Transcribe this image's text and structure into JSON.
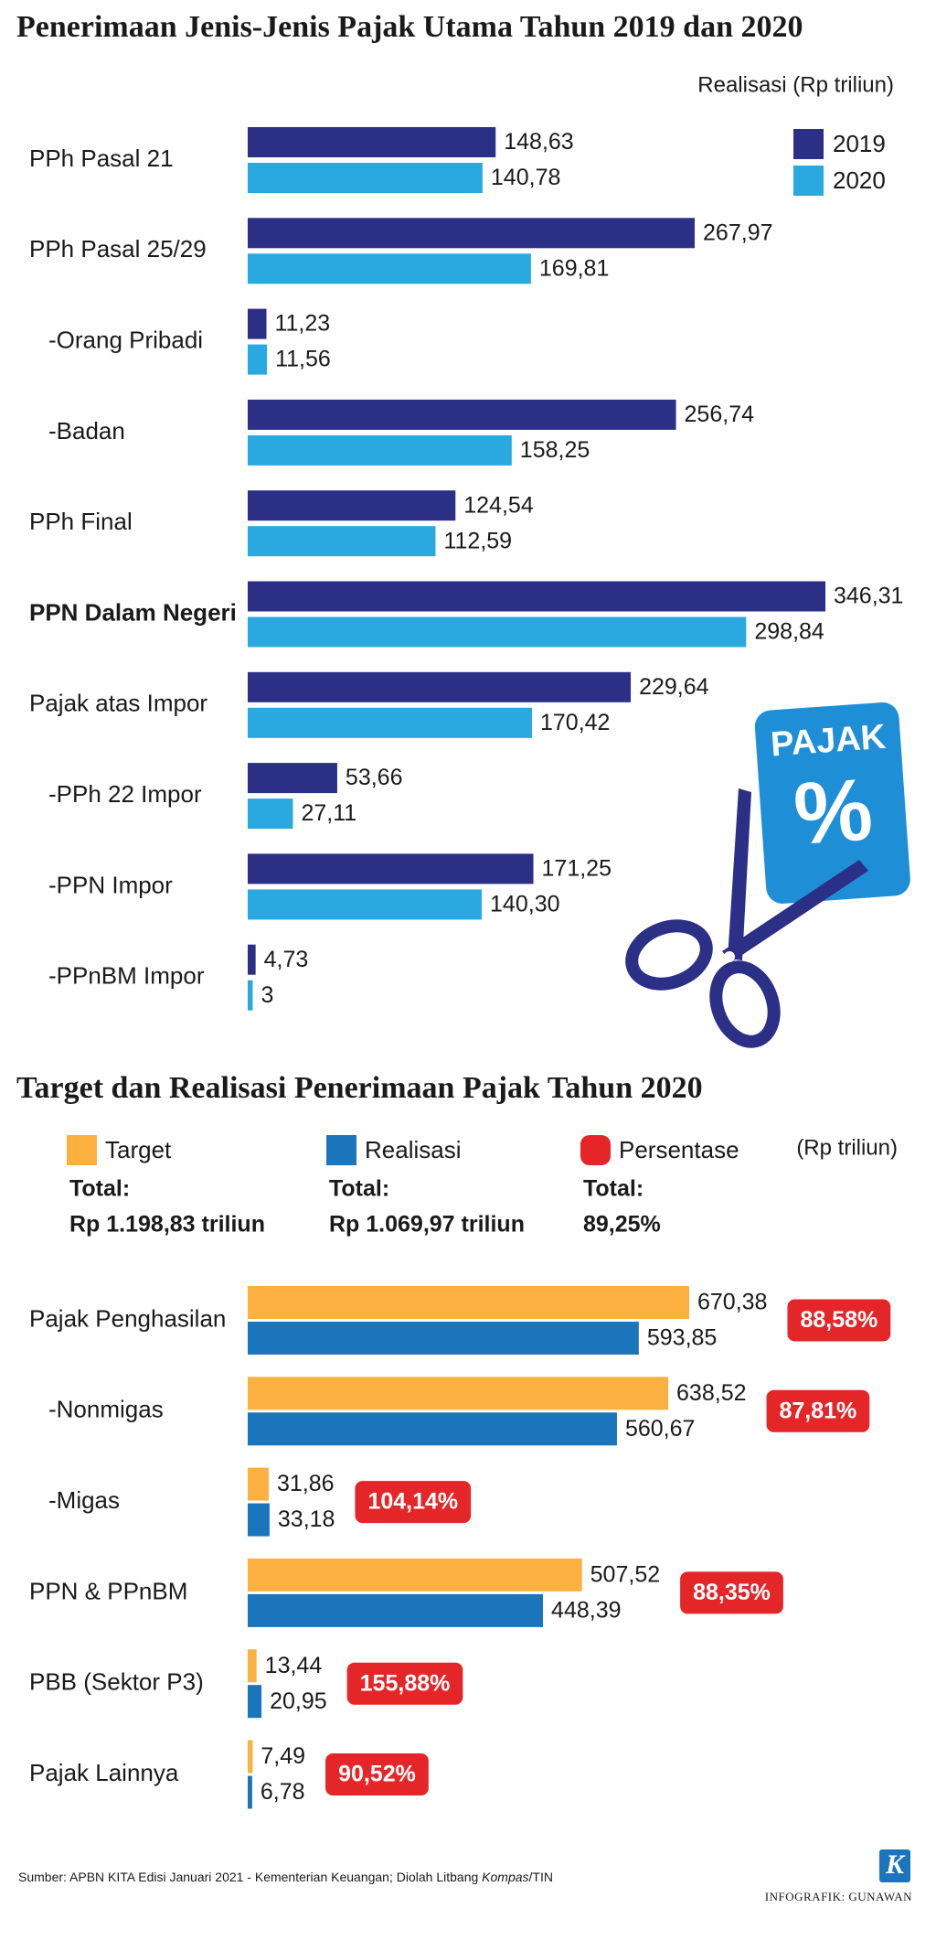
{
  "chart_data": [
    {
      "type": "bar",
      "orientation": "horizontal",
      "title": "Penerimaan Jenis-Jenis Pajak Utama Tahun 2019 dan 2020",
      "subtitle": "Realisasi (Rp triliun)",
      "categories": [
        "PPh Pasal 21",
        "PPh Pasal 25/29",
        "-Orang Pribadi",
        "-Badan",
        "PPh Final",
        "PPN Dalam Negeri",
        "Pajak atas Impor",
        "-PPh 22 Impor",
        "-PPN Impor",
        "-PPnBM Impor"
      ],
      "series": [
        {
          "name": "2019",
          "color": "#2b2f86",
          "values": [
            148.63,
            267.97,
            11.23,
            256.74,
            124.54,
            346.31,
            229.64,
            53.66,
            171.25,
            4.73
          ],
          "value_labels": [
            "148,63",
            "267,97",
            "11,23",
            "256,74",
            "124,54",
            "346,31",
            "229,64",
            "53,66",
            "171,25",
            "4,73"
          ]
        },
        {
          "name": "2020",
          "color": "#29a9e0",
          "values": [
            140.78,
            169.81,
            11.56,
            158.25,
            112.59,
            298.84,
            170.42,
            27.11,
            140.3,
            3
          ],
          "value_labels": [
            "140,78",
            "169,81",
            "11,56",
            "158,25",
            "112,59",
            "298,84",
            "170,42",
            "27,11",
            "140,30",
            "3"
          ]
        }
      ],
      "legend": "upper right"
    },
    {
      "type": "bar",
      "orientation": "horizontal",
      "title": "Target dan Realisasi Penerimaan Pajak Tahun 2020",
      "unit": "(Rp triliun)",
      "categories": [
        "Pajak Penghasilan",
        "-Nonmigas",
        "-Migas",
        "PPN & PPnBM",
        "PBB (Sektor P3)",
        "Pajak Lainnya"
      ],
      "series": [
        {
          "name": "Target",
          "color": "#fbb040",
          "values": [
            670.38,
            638.52,
            31.86,
            507.52,
            13.44,
            7.49
          ],
          "value_labels": [
            "670,38",
            "638,52",
            "31,86",
            "507,52",
            "13,44",
            "7,49"
          ]
        },
        {
          "name": "Realisasi",
          "color": "#1b75bc",
          "values": [
            593.85,
            560.67,
            33.18,
            448.39,
            20.95,
            6.78
          ],
          "value_labels": [
            "593,85",
            "560,67",
            "33,18",
            "448,39",
            "20,95",
            "6,78"
          ]
        },
        {
          "name": "Persentase",
          "color": "#e52629",
          "badge": true,
          "values": [
            88.58,
            87.81,
            104.14,
            88.35,
            155.88,
            90.52
          ],
          "value_labels": [
            "88,58%",
            "87,81%",
            "104,14%",
            "88,35%",
            "155,88%",
            "90,52%"
          ]
        }
      ],
      "totals": [
        {
          "label": "Total:",
          "text": "Rp 1.198,83 triliun"
        },
        {
          "label": "Total:",
          "text": "Rp 1.069,97 triliun"
        },
        {
          "label": "Total:",
          "text": "89,25%"
        }
      ],
      "legend": "top"
    }
  ],
  "icon": {
    "title": "PAJAK",
    "symbol": "%"
  },
  "source": {
    "text": "Sumber: APBN KITA Edisi Januari 2021 - Kementerian Keuangan; Diolah Litbang ",
    "emphasis": "Kompas",
    "suffix": "/TIN"
  },
  "credit": "INFOGRAFIK: GUNAWAN",
  "logo": "K"
}
